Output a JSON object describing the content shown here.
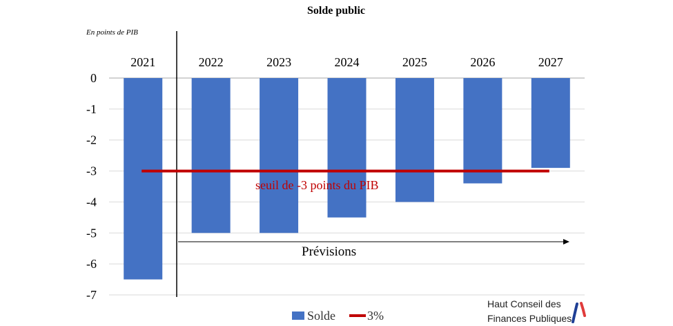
{
  "chart_data": {
    "type": "bar",
    "title": "Solde public",
    "unit_label": "En points de PIB",
    "categories": [
      "2021",
      "2022",
      "2023",
      "2024",
      "2025",
      "2026",
      "2027"
    ],
    "series": [
      {
        "name": "Solde",
        "values": [
          -6.5,
          -5.0,
          -5.0,
          -4.5,
          -4.0,
          -3.4,
          -2.9
        ],
        "color": "#4472c4"
      },
      {
        "name": "3%",
        "type": "line",
        "values": [
          -3,
          -3,
          -3,
          -3,
          -3,
          -3,
          -3
        ],
        "color": "#c00000"
      }
    ],
    "y_ticks": [
      "0",
      "-1",
      "-2",
      "-3",
      "-4",
      "-5",
      "-6",
      "-7"
    ],
    "ylim": [
      -7,
      0
    ],
    "grid": true,
    "legend_placement": "bottom",
    "annotations": {
      "threshold": "seuil de -3 points du PIB",
      "forecast": "Prévisions"
    }
  },
  "logo": {
    "line1": "Haut Conseil des",
    "line2": "Finances Publiques",
    "colors": [
      "#1f3f95",
      "#e03b3b"
    ]
  }
}
